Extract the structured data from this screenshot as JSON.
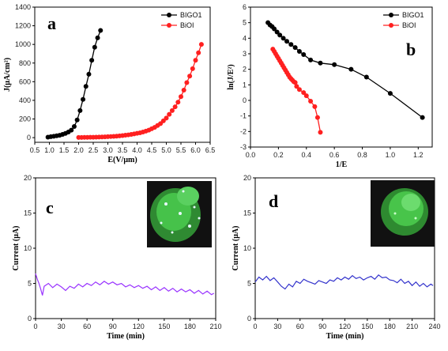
{
  "chart_data": [
    {
      "panel": "a",
      "type": "scatter",
      "xlabel": "E(V/μm)",
      "ylabel": "J(μA/cm²)",
      "xlim": [
        0.5,
        6.5
      ],
      "ylim": [
        -50,
        1400
      ],
      "xticks": [
        "0.5",
        "1.0",
        "1.5",
        "2.0",
        "2.5",
        "3.0",
        "3.5",
        "4.0",
        "4.5",
        "5.0",
        "5.5",
        "6.0",
        "6.5"
      ],
      "yticks": [
        "0",
        "200",
        "400",
        "600",
        "800",
        "1000",
        "1200",
        "1400"
      ],
      "legend_position": "top-right",
      "series": [
        {
          "name": "BIGO1",
          "color": "#000000",
          "x": [
            0.95,
            1.05,
            1.15,
            1.25,
            1.35,
            1.45,
            1.55,
            1.65,
            1.75,
            1.85,
            1.95,
            2.05,
            2.15,
            2.25,
            2.35,
            2.45,
            2.55,
            2.65,
            2.75
          ],
          "y": [
            5,
            10,
            15,
            20,
            25,
            35,
            45,
            60,
            80,
            120,
            190,
            290,
            410,
            550,
            680,
            830,
            970,
            1070,
            1150
          ]
        },
        {
          "name": "BiOI",
          "color": "#ff2020",
          "x": [
            2.0,
            2.1,
            2.2,
            2.3,
            2.4,
            2.5,
            2.6,
            2.7,
            2.8,
            2.9,
            3.0,
            3.1,
            3.2,
            3.3,
            3.4,
            3.5,
            3.6,
            3.7,
            3.8,
            3.9,
            4.0,
            4.1,
            4.2,
            4.3,
            4.4,
            4.5,
            4.6,
            4.7,
            4.8,
            4.9,
            5.0,
            5.1,
            5.2,
            5.3,
            5.4,
            5.5,
            5.6,
            5.7,
            5.8,
            5.9,
            6.0,
            6.1,
            6.2
          ],
          "y": [
            2,
            2,
            3,
            3,
            4,
            4,
            5,
            6,
            7,
            8,
            10,
            12,
            14,
            16,
            19,
            22,
            26,
            30,
            35,
            40,
            46,
            52,
            60,
            70,
            80,
            95,
            110,
            130,
            150,
            180,
            210,
            250,
            290,
            330,
            380,
            440,
            510,
            590,
            660,
            740,
            830,
            910,
            1000
          ]
        }
      ]
    },
    {
      "panel": "b",
      "type": "scatter",
      "xlabel": "1/E",
      "ylabel": "ln(J/E²)",
      "xlim": [
        0.0,
        1.3
      ],
      "ylim": [
        -3,
        6
      ],
      "xticks": [
        "0.0",
        "0.2",
        "0.4",
        "0.6",
        "0.8",
        "1.0",
        "1.2"
      ],
      "yticks": [
        "-3",
        "-2",
        "-1",
        "0",
        "1",
        "2",
        "3",
        "4",
        "5",
        "6"
      ],
      "legend_position": "top-right",
      "series": [
        {
          "name": "BIGO1",
          "color": "#000000",
          "x": [
            0.125,
            0.14,
            0.155,
            0.17,
            0.19,
            0.21,
            0.235,
            0.26,
            0.29,
            0.32,
            0.35,
            0.38,
            0.43,
            0.5,
            0.6,
            0.72,
            0.83,
            1.0,
            1.23
          ],
          "y": [
            5.0,
            4.85,
            4.75,
            4.6,
            4.4,
            4.2,
            4.0,
            3.8,
            3.6,
            3.4,
            3.15,
            2.95,
            2.6,
            2.4,
            2.3,
            2.0,
            1.5,
            0.45,
            -1.1
          ]
        },
        {
          "name": "BiOI",
          "color": "#ff2020",
          "x": [
            0.16,
            0.17,
            0.18,
            0.19,
            0.2,
            0.21,
            0.22,
            0.23,
            0.24,
            0.25,
            0.26,
            0.27,
            0.28,
            0.29,
            0.3,
            0.31,
            0.32,
            0.33,
            0.35,
            0.38,
            0.4,
            0.43,
            0.46,
            0.48,
            0.5
          ],
          "y": [
            3.3,
            3.15,
            3.0,
            2.85,
            2.7,
            2.55,
            2.4,
            2.25,
            2.1,
            1.95,
            1.8,
            1.65,
            1.5,
            1.4,
            1.3,
            1.2,
            1.15,
            0.9,
            0.7,
            0.5,
            0.3,
            -0.05,
            -0.4,
            -1.1,
            -2.05
          ]
        }
      ]
    },
    {
      "panel": "c",
      "type": "line",
      "xlabel": "Time (min)",
      "ylabel": "Current (μA)",
      "xlim": [
        0,
        210
      ],
      "ylim": [
        0,
        20
      ],
      "xticks": [
        "0",
        "30",
        "60",
        "90",
        "120",
        "150",
        "180",
        "210"
      ],
      "yticks": [
        "0",
        "5",
        "10",
        "15",
        "20"
      ],
      "series": [
        {
          "color": "#9933ff",
          "x": [
            0,
            2,
            4,
            6,
            8,
            10,
            15,
            20,
            25,
            30,
            35,
            40,
            45,
            50,
            55,
            60,
            65,
            70,
            75,
            80,
            85,
            90,
            95,
            100,
            105,
            110,
            115,
            120,
            125,
            130,
            135,
            140,
            145,
            150,
            155,
            160,
            165,
            170,
            175,
            180,
            185,
            190,
            195,
            200,
            205,
            208
          ],
          "y": [
            6.4,
            5.6,
            5.0,
            4.2,
            3.3,
            4.6,
            5.0,
            4.4,
            4.9,
            4.5,
            4.0,
            4.6,
            4.3,
            4.9,
            4.5,
            5.0,
            4.7,
            5.2,
            4.8,
            5.3,
            4.9,
            5.2,
            4.8,
            5.0,
            4.5,
            4.8,
            4.4,
            4.7,
            4.3,
            4.6,
            4.1,
            4.5,
            4.0,
            4.4,
            3.9,
            4.3,
            3.8,
            4.2,
            3.8,
            4.1,
            3.6,
            4.0,
            3.5,
            3.9,
            3.4,
            3.6
          ]
        }
      ]
    },
    {
      "panel": "d",
      "type": "line",
      "xlabel": "Time (min)",
      "ylabel": "Current (μA)",
      "xlim": [
        0,
        240
      ],
      "ylim": [
        0,
        20
      ],
      "xticks": [
        "0",
        "30",
        "60",
        "90",
        "120",
        "150",
        "180",
        "210",
        "240"
      ],
      "yticks": [
        "0",
        "5",
        "10",
        "15",
        "20"
      ],
      "series": [
        {
          "color": "#3333cc",
          "x": [
            0,
            5,
            10,
            15,
            20,
            25,
            30,
            35,
            40,
            45,
            50,
            55,
            60,
            65,
            70,
            75,
            80,
            85,
            90,
            95,
            100,
            105,
            110,
            115,
            120,
            125,
            130,
            135,
            140,
            145,
            150,
            155,
            160,
            165,
            170,
            175,
            180,
            185,
            190,
            195,
            200,
            205,
            210,
            215,
            220,
            225,
            230,
            235,
            238
          ],
          "y": [
            5.2,
            5.9,
            5.5,
            6.0,
            5.4,
            5.8,
            5.2,
            4.6,
            4.2,
            4.9,
            4.5,
            5.3,
            5.0,
            5.6,
            5.3,
            5.1,
            4.9,
            5.4,
            5.2,
            5.0,
            5.5,
            5.3,
            5.8,
            5.5,
            5.9,
            5.6,
            6.1,
            5.7,
            5.9,
            5.5,
            5.8,
            6.0,
            5.6,
            6.2,
            5.8,
            5.9,
            5.5,
            5.4,
            5.1,
            5.6,
            5.0,
            5.3,
            4.7,
            5.2,
            4.6,
            5.0,
            4.5,
            4.9,
            4.7
          ]
        }
      ]
    }
  ],
  "panel_labels": [
    "a",
    "b",
    "c",
    "d"
  ],
  "colors": {
    "bigo1": "#000000",
    "bioi": "#ff2020",
    "trace_c": "#9933ff",
    "trace_d": "#3333cc",
    "inset_bg": "#111111",
    "inset_glow": "#33cc44"
  }
}
